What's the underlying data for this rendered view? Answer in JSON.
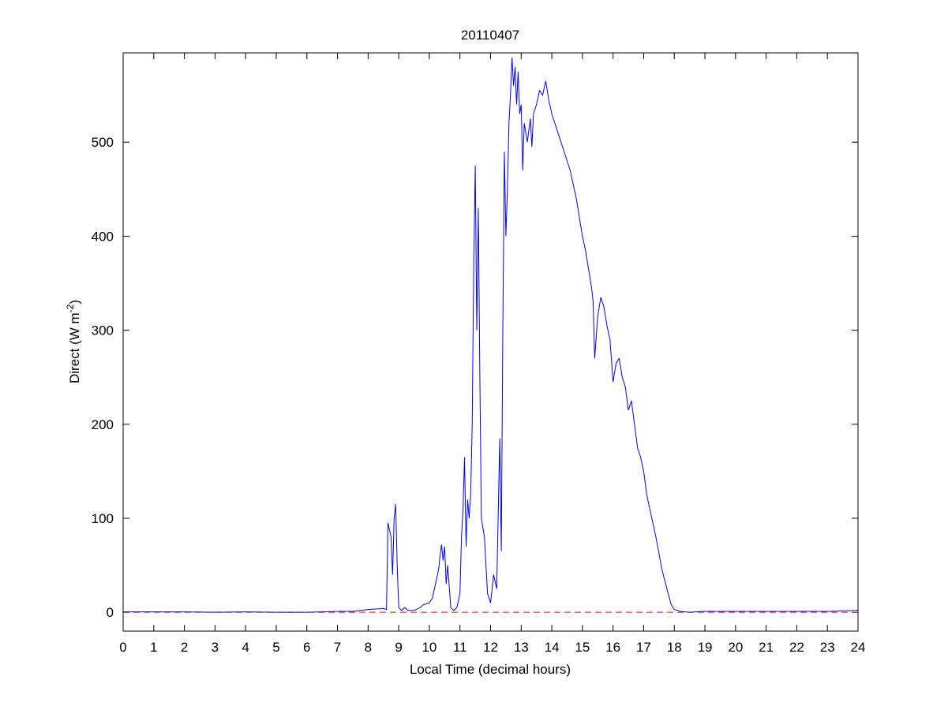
{
  "chart_data": {
    "type": "line",
    "title": "20110407",
    "x_label": "Local Time (decimal hours)",
    "y_label": {
      "text": "Direct (W m",
      "superscript": "-2",
      "suffix": ")"
    },
    "x": [
      0,
      1,
      2,
      3,
      4,
      5,
      6,
      7,
      7.5,
      8,
      8.5,
      8.6,
      8.65,
      8.75,
      8.8,
      8.85,
      8.9,
      8.95,
      9.0,
      9.1,
      9.2,
      9.3,
      9.5,
      9.7,
      9.8,
      10,
      10.1,
      10.2,
      10.3,
      10.35,
      10.4,
      10.45,
      10.5,
      10.55,
      10.6,
      10.7,
      10.8,
      10.9,
      11,
      11.05,
      11.1,
      11.15,
      11.2,
      11.25,
      11.3,
      11.35,
      11.4,
      11.45,
      11.5,
      11.55,
      11.6,
      11.65,
      11.7,
      11.8,
      11.9,
      12,
      12.1,
      12.2,
      12.3,
      12.35,
      12.4,
      12.45,
      12.5,
      12.55,
      12.6,
      12.65,
      12.7,
      12.75,
      12.8,
      12.85,
      12.9,
      12.95,
      13,
      13.05,
      13.1,
      13.2,
      13.3,
      13.35,
      13.4,
      13.5,
      13.6,
      13.7,
      13.8,
      13.9,
      14,
      14.1,
      14.2,
      14.4,
      14.6,
      14.8,
      15,
      15.1,
      15.2,
      15.3,
      15.35,
      15.4,
      15.5,
      15.6,
      15.7,
      15.8,
      15.9,
      16,
      16.1,
      16.2,
      16.3,
      16.4,
      16.5,
      16.6,
      16.7,
      16.8,
      16.9,
      17,
      17.1,
      17.2,
      17.4,
      17.6,
      17.8,
      17.9,
      18,
      18.2,
      18.5,
      19,
      20,
      22,
      23,
      24
    ],
    "series": [
      {
        "color": "#0000ff",
        "values": [
          0.5,
          0.5,
          0.5,
          0,
          0.5,
          0,
          0,
          1,
          1,
          3,
          4,
          3,
          95,
          80,
          40,
          100,
          115,
          50,
          5,
          2,
          5,
          2,
          2,
          5,
          8,
          10,
          15,
          30,
          45,
          60,
          72,
          55,
          70,
          30,
          50,
          5,
          2,
          5,
          20,
          80,
          110,
          165,
          70,
          120,
          100,
          125,
          200,
          370,
          475,
          300,
          430,
          250,
          100,
          80,
          20,
          10,
          40,
          25,
          185,
          65,
          300,
          490,
          400,
          450,
          520,
          550,
          590,
          560,
          580,
          540,
          575,
          530,
          540,
          470,
          520,
          500,
          525,
          495,
          530,
          540,
          555,
          550,
          565,
          545,
          530,
          520,
          510,
          490,
          470,
          440,
          400,
          385,
          365,
          345,
          330,
          270,
          315,
          335,
          325,
          305,
          290,
          245,
          265,
          270,
          250,
          240,
          215,
          225,
          200,
          175,
          165,
          150,
          125,
          110,
          80,
          45,
          20,
          8,
          3,
          1,
          0,
          1,
          1,
          1,
          1,
          2
        ]
      }
    ],
    "reference_line": {
      "y": 0,
      "color": "#ff0000",
      "style": "dashed"
    },
    "xlim": [
      0,
      24
    ],
    "xticks": [
      0,
      1,
      2,
      3,
      4,
      5,
      6,
      7,
      8,
      9,
      10,
      11,
      12,
      13,
      14,
      15,
      16,
      17,
      18,
      19,
      20,
      21,
      22,
      23,
      24
    ],
    "ylim": [
      -20,
      595
    ],
    "yticks": [
      0,
      100,
      200,
      300,
      400,
      500
    ]
  }
}
